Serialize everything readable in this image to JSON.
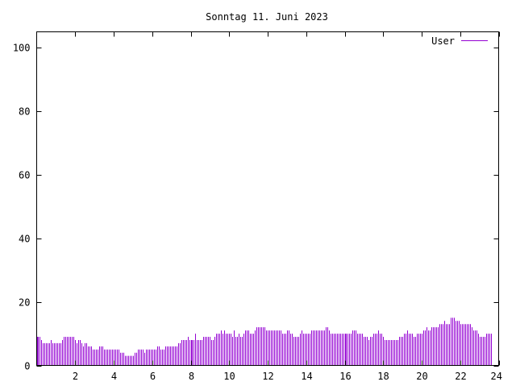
{
  "chart_data": {
    "type": "bar",
    "title": "Sonntag 11. Juni 2023",
    "xlabel": "",
    "ylabel": "",
    "xlim": [
      0,
      24
    ],
    "ylim": [
      0,
      105
    ],
    "x_ticks": [
      2,
      4,
      6,
      8,
      10,
      12,
      14,
      16,
      18,
      20,
      22,
      24
    ],
    "x_tick_labels": [
      "2",
      "4",
      "6",
      "8",
      "10",
      "12",
      "14",
      "16",
      "18",
      "20",
      "22",
      "24"
    ],
    "y_ticks": [
      0,
      20,
      40,
      60,
      80,
      100
    ],
    "y_tick_labels": [
      "0",
      "20",
      "40",
      "60",
      "80",
      "100"
    ],
    "grid": false,
    "legend_position": "top-right",
    "interval_minutes": 5,
    "series": [
      {
        "name": "User",
        "color": "#9400D3",
        "values": [
          9,
          9,
          9,
          8,
          7,
          7,
          7,
          7,
          7,
          8,
          7,
          7,
          7,
          7,
          7,
          7,
          8,
          9,
          9,
          9,
          9,
          9,
          9,
          9,
          8,
          7,
          8,
          8,
          7,
          6,
          7,
          7,
          6,
          6,
          6,
          5,
          5,
          5,
          5,
          6,
          6,
          6,
          5,
          5,
          5,
          5,
          5,
          5,
          5,
          5,
          5,
          5,
          4,
          4,
          4,
          3,
          3,
          3,
          3,
          3,
          3,
          4,
          4,
          5,
          5,
          5,
          5,
          4,
          5,
          5,
          5,
          5,
          5,
          5,
          5,
          6,
          6,
          5,
          5,
          5,
          6,
          6,
          6,
          6,
          6,
          6,
          6,
          6,
          7,
          7,
          8,
          8,
          8,
          8,
          9,
          8,
          8,
          8,
          8,
          10,
          8,
          8,
          8,
          8,
          9,
          9,
          9,
          9,
          9,
          8,
          8,
          9,
          10,
          10,
          10,
          11,
          10,
          11,
          10,
          10,
          10,
          10,
          9,
          11,
          9,
          9,
          10,
          9,
          9,
          10,
          11,
          11,
          11,
          10,
          10,
          10,
          11,
          12,
          12,
          12,
          12,
          12,
          12,
          11,
          11,
          11,
          11,
          11,
          11,
          11,
          11,
          11,
          11,
          10,
          10,
          10,
          11,
          11,
          10,
          10,
          9,
          9,
          9,
          9,
          10,
          11,
          10,
          10,
          10,
          10,
          10,
          11,
          11,
          11,
          11,
          11,
          11,
          11,
          11,
          11,
          12,
          12,
          11,
          10,
          10,
          10,
          10,
          10,
          10,
          10,
          10,
          10,
          10,
          10,
          10,
          10,
          10,
          11,
          11,
          11,
          10,
          10,
          10,
          10,
          9,
          9,
          9,
          8,
          9,
          9,
          10,
          10,
          10,
          11,
          10,
          10,
          9,
          8,
          8,
          8,
          8,
          8,
          8,
          8,
          8,
          8,
          9,
          9,
          9,
          10,
          10,
          11,
          10,
          10,
          10,
          9,
          9,
          10,
          10,
          10,
          10,
          11,
          11,
          12,
          11,
          11,
          12,
          12,
          12,
          12,
          12,
          13,
          13,
          13,
          14,
          13,
          13,
          13,
          15,
          15,
          15,
          14,
          14,
          14,
          13,
          13,
          13,
          13,
          13,
          13,
          13,
          12,
          11,
          11,
          11,
          10,
          9,
          9,
          9,
          9,
          10,
          10,
          10,
          10
        ]
      }
    ]
  }
}
